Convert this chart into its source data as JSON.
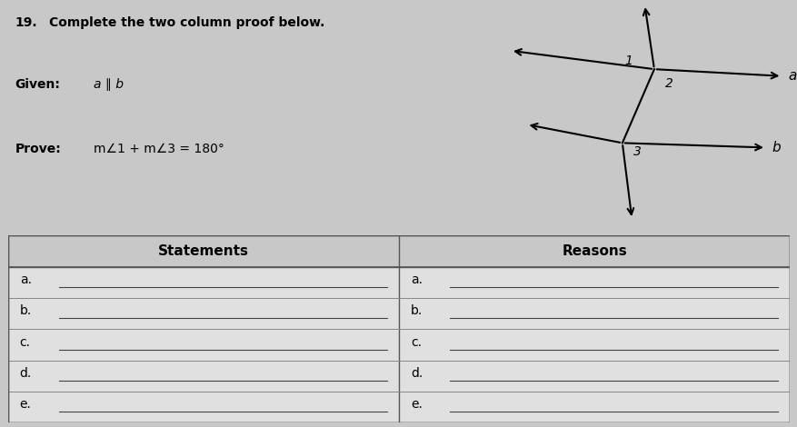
{
  "title_number": "19.",
  "title_text": "Complete the two column proof below.",
  "given_label": "Given:",
  "given_text": "a ∥ b",
  "prove_label": "Prove:",
  "prove_text": "m∠1 + m∠3 = 180°",
  "statements_header": "Statements",
  "reasons_header": "Reasons",
  "row_labels": [
    "a.",
    "b.",
    "c.",
    "d.",
    "e."
  ],
  "fig_bg": "#c8c8c8",
  "top_bg": "#c8c8c8",
  "table_bg": "#e0e0e0",
  "header_bg": "#c8c8c8",
  "diagram": {
    "angle1_label": "1",
    "angle2_label": "2",
    "angle3_label": "3",
    "label_a": "a",
    "label_b": "b"
  }
}
